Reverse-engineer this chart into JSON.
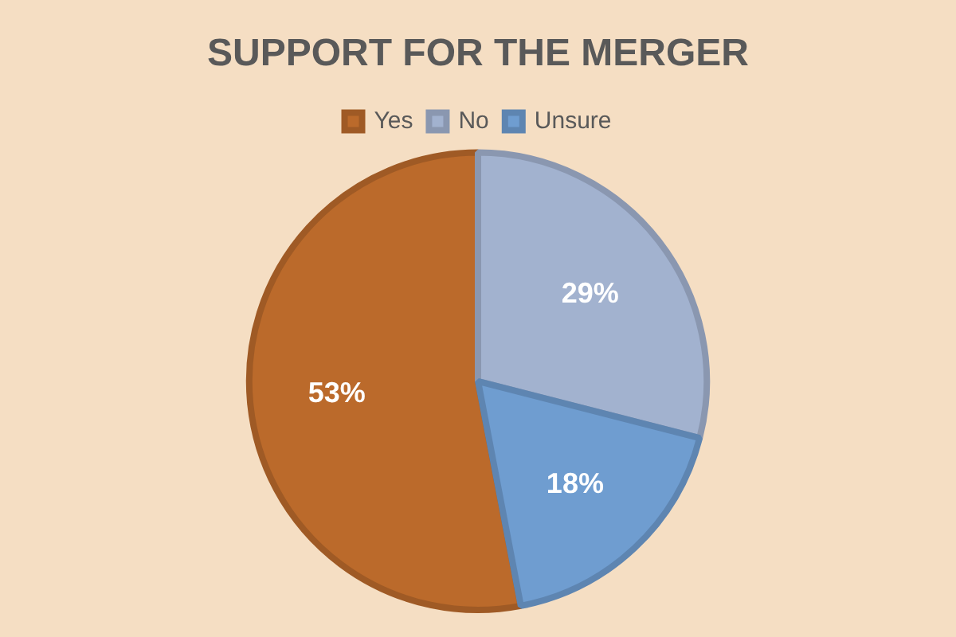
{
  "chart_data": {
    "type": "pie",
    "title": "SUPPORT FOR THE MERGER",
    "categories": [
      "Yes",
      "No",
      "Unsure"
    ],
    "values": [
      53,
      29,
      18
    ],
    "colors": [
      "#bb6a2b",
      "#a2b2cf",
      "#6f9dd0"
    ],
    "value_labels": [
      "53%",
      "29%",
      "18%"
    ],
    "legend": "top"
  }
}
